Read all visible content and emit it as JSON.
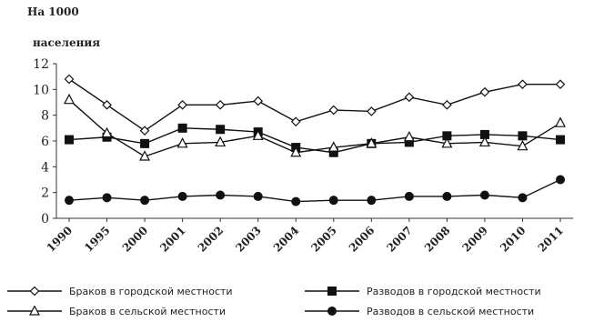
{
  "chart_data": {
    "type": "line",
    "title": "",
    "ylabel_line1": "На 1000",
    "ylabel_line2": "населения",
    "xlabel": "",
    "categories": [
      "1990",
      "1995",
      "2000",
      "2001",
      "2002",
      "2003",
      "2004",
      "2005",
      "2006",
      "2007",
      "2008",
      "2009",
      "2010",
      "2011"
    ],
    "ylim": [
      0,
      12
    ],
    "yticks": [
      0,
      2,
      4,
      6,
      8,
      10,
      12
    ],
    "grid": false,
    "legend_position": "bottom",
    "series": [
      {
        "name": "Браков в городской местности",
        "marker": "diamond-open",
        "values": [
          10.8,
          8.8,
          6.8,
          8.8,
          8.8,
          9.1,
          7.5,
          8.4,
          8.3,
          9.4,
          8.8,
          9.8,
          10.4,
          10.4
        ]
      },
      {
        "name": "Разводов в городской местности",
        "marker": "square-filled",
        "values": [
          6.1,
          6.3,
          5.8,
          7.0,
          6.9,
          6.7,
          5.5,
          5.1,
          5.8,
          5.9,
          6.4,
          6.5,
          6.4,
          6.1
        ]
      },
      {
        "name": "Браков в сельской местности",
        "marker": "triangle-open",
        "values": [
          9.2,
          6.6,
          4.8,
          5.8,
          5.9,
          6.4,
          5.1,
          5.5,
          5.8,
          6.3,
          5.8,
          5.9,
          5.6,
          7.4
        ]
      },
      {
        "name": "Разводов в сельской местности",
        "marker": "circle-filled",
        "values": [
          1.4,
          1.6,
          1.4,
          1.7,
          1.8,
          1.7,
          1.3,
          1.4,
          1.4,
          1.7,
          1.7,
          1.8,
          1.6,
          3.0
        ]
      }
    ]
  }
}
